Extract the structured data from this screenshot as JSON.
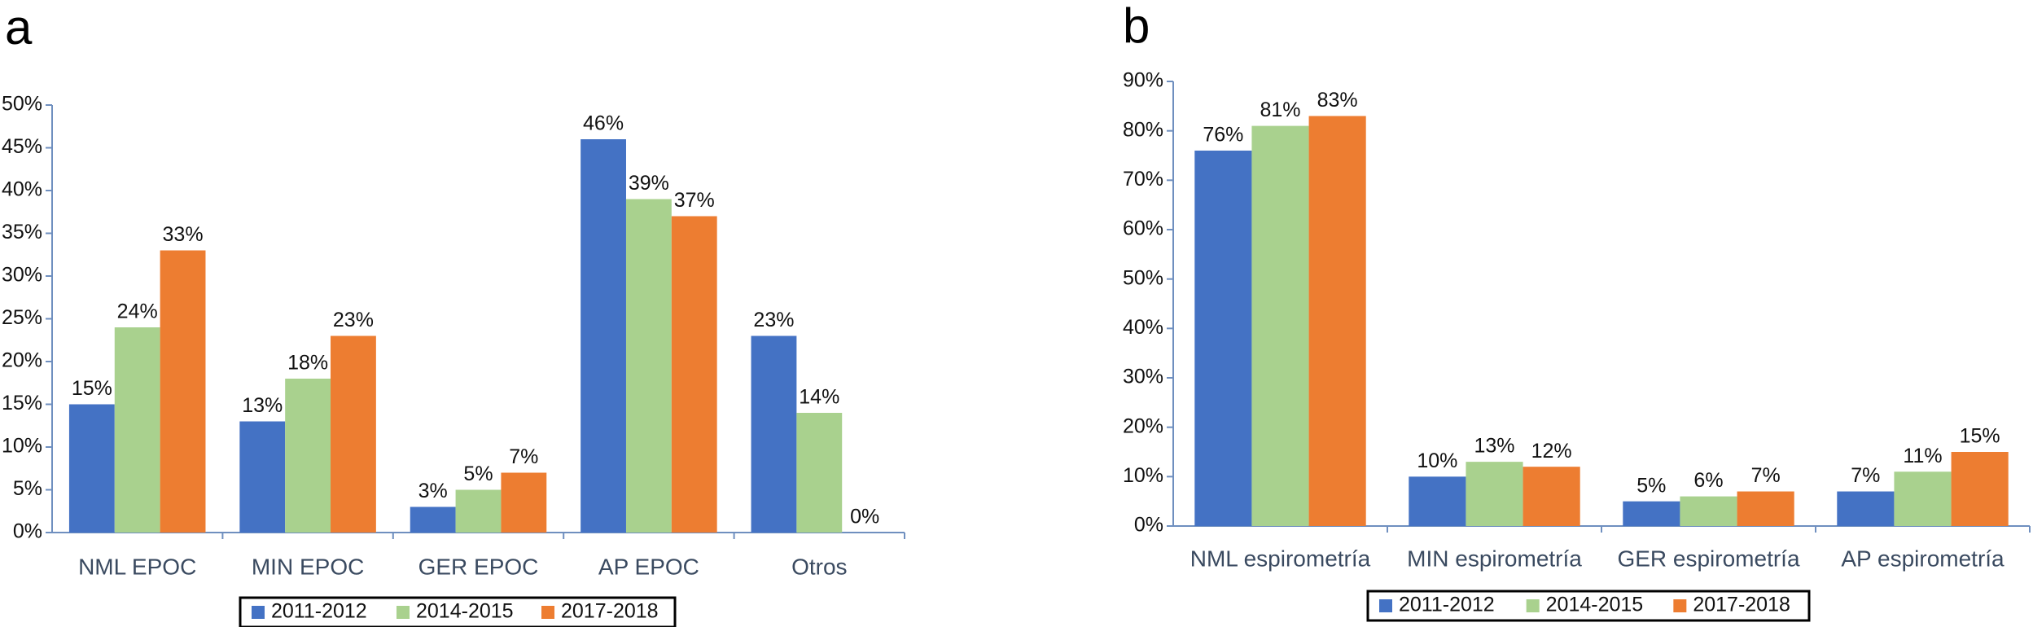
{
  "chart_data": [
    {
      "type": "bar",
      "title": "a",
      "categories": [
        "NML EPOC",
        "MIN EPOC",
        "GER EPOC",
        "AP EPOC",
        "Otros"
      ],
      "series": [
        {
          "name": "2011-2012",
          "color": "#4472c4",
          "values": [
            15,
            13,
            3,
            46,
            23
          ],
          "value_labels": [
            "15%",
            "13%",
            "3%",
            "46%",
            "23%"
          ]
        },
        {
          "name": "2014-2015",
          "color": "#a9d18e",
          "values": [
            24,
            18,
            5,
            39,
            14
          ],
          "value_labels": [
            "24%",
            "18%",
            "5%",
            "39%",
            "14%"
          ]
        },
        {
          "name": "2017-2018",
          "color": "#ed7d31",
          "values": [
            33,
            23,
            7,
            37,
            0
          ],
          "value_labels": [
            "33%",
            "23%",
            "7%",
            "37%",
            "0%"
          ]
        }
      ],
      "ylim": [
        0,
        50
      ],
      "yticks": [
        {
          "value": 0,
          "label": "0%"
        },
        {
          "value": 5,
          "label": "5%"
        },
        {
          "value": 10,
          "label": "10%"
        },
        {
          "value": 15,
          "label": "15%"
        },
        {
          "value": 20,
          "label": "20%"
        },
        {
          "value": 25,
          "label": "25%"
        },
        {
          "value": 30,
          "label": "30%"
        },
        {
          "value": 35,
          "label": "35%"
        },
        {
          "value": 40,
          "label": "40%"
        },
        {
          "value": 45,
          "label": "45%"
        },
        {
          "value": 50,
          "label": "50%"
        }
      ],
      "grid": false,
      "legend": "bottom"
    },
    {
      "type": "bar",
      "title": "b",
      "categories": [
        "NML espirometría",
        "MIN espirometría",
        "GER espirometría",
        "AP espirometría"
      ],
      "series": [
        {
          "name": "2011-2012",
          "color": "#4472c4",
          "values": [
            76,
            10,
            5,
            7
          ],
          "value_labels": [
            "76%",
            "10%",
            "5%",
            "7%"
          ]
        },
        {
          "name": "2014-2015",
          "color": "#a9d18e",
          "values": [
            81,
            13,
            6,
            11
          ],
          "value_labels": [
            "81%",
            "13%",
            "6%",
            "11%"
          ]
        },
        {
          "name": "2017-2018",
          "color": "#ed7d31",
          "values": [
            83,
            12,
            7,
            15
          ],
          "value_labels": [
            "83%",
            "12%",
            "7%",
            "15%"
          ]
        }
      ],
      "ylim": [
        0,
        90
      ],
      "yticks": [
        {
          "value": 0,
          "label": "0%"
        },
        {
          "value": 10,
          "label": "10%"
        },
        {
          "value": 20,
          "label": "20%"
        },
        {
          "value": 30,
          "label": "30%"
        },
        {
          "value": 40,
          "label": "40%"
        },
        {
          "value": 50,
          "label": "50%"
        },
        {
          "value": 60,
          "label": "60%"
        },
        {
          "value": 70,
          "label": "70%"
        },
        {
          "value": 80,
          "label": "80%"
        },
        {
          "value": 90,
          "label": "90%"
        }
      ],
      "grid": false,
      "legend": "bottom"
    }
  ]
}
